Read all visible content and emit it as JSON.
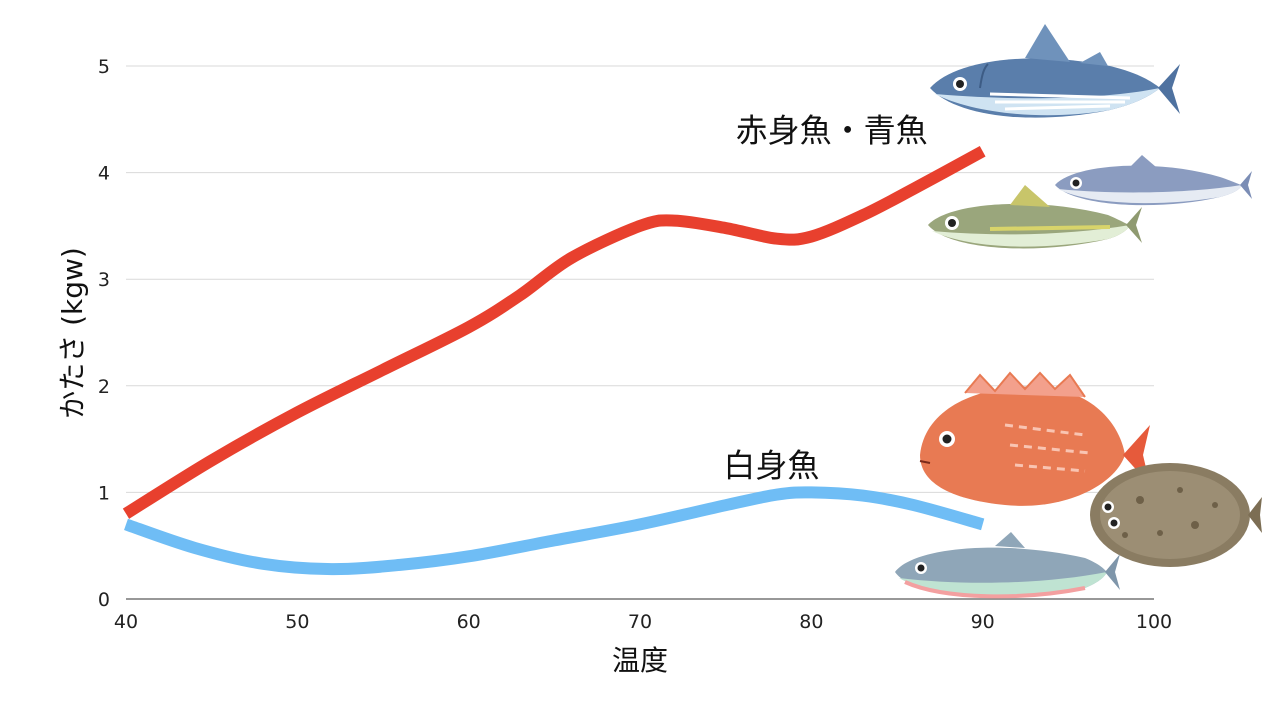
{
  "chart_data": {
    "type": "line",
    "title": "",
    "xlabel": "温度",
    "ylabel": "かたさ (kgw)",
    "xlim": [
      40,
      100
    ],
    "ylim": [
      0,
      5
    ],
    "x_ticks": [
      40,
      50,
      60,
      70,
      80,
      90,
      100
    ],
    "y_ticks": [
      0,
      1,
      2,
      3,
      4,
      5
    ],
    "grid": "horizontal",
    "legend": "none",
    "series": [
      {
        "name": "赤身魚・青魚",
        "color": "#e8402e",
        "x": [
          40,
          45,
          50,
          55,
          60,
          63,
          66,
          70,
          72,
          75,
          78,
          80,
          83,
          86,
          90
        ],
        "y": [
          0.8,
          1.3,
          1.75,
          2.15,
          2.55,
          2.85,
          3.2,
          3.5,
          3.55,
          3.48,
          3.38,
          3.4,
          3.6,
          3.85,
          4.2
        ]
      },
      {
        "name": "白身魚",
        "color": "#6fbdf5",
        "x": [
          40,
          44,
          48,
          52,
          56,
          60,
          65,
          70,
          75,
          78,
          80,
          83,
          86,
          90
        ],
        "y": [
          0.7,
          0.48,
          0.33,
          0.28,
          0.32,
          0.4,
          0.55,
          0.7,
          0.88,
          0.98,
          1.0,
          0.97,
          0.88,
          0.7
        ]
      }
    ],
    "annotations": [
      {
        "text": "赤身魚・青魚",
        "series": "赤身魚・青魚"
      },
      {
        "text": "白身魚",
        "series": "白身魚"
      }
    ]
  },
  "illustrations": {
    "red_group": [
      "tuna-icon",
      "mackerel-icon",
      "horse-mackerel-icon"
    ],
    "white_group": [
      "sea-bream-icon",
      "flounder-icon",
      "salmon-icon"
    ]
  }
}
